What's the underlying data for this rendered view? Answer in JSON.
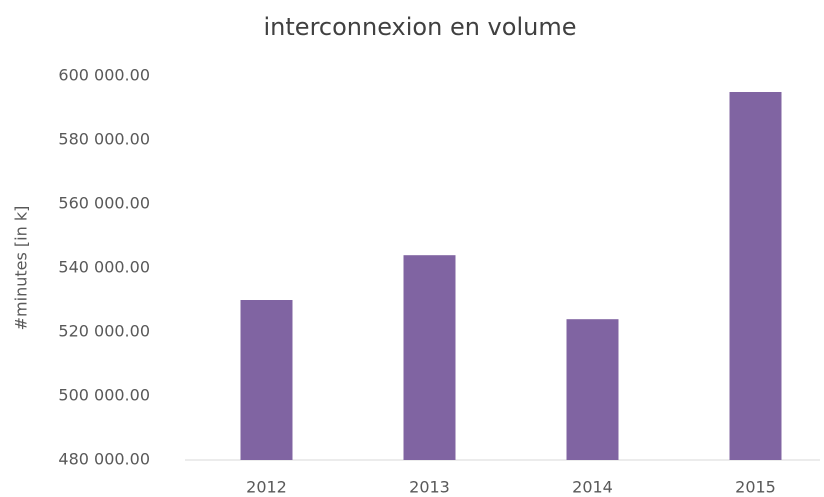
{
  "chart_data": {
    "type": "bar",
    "title": "interconnexion en volume",
    "y_label": "#minutes [in k]",
    "categories": [
      "2012",
      "2013",
      "2014",
      "2015"
    ],
    "values": [
      530000,
      544000,
      524000,
      595000
    ],
    "color": "#8064a2",
    "ylim": [
      480000,
      600000
    ],
    "yticks": [
      {
        "value": 480000,
        "label": "480 000.00"
      },
      {
        "value": 500000,
        "label": "500 000.00"
      },
      {
        "value": 520000,
        "label": "520 000.00"
      },
      {
        "value": 540000,
        "label": "540 000.00"
      },
      {
        "value": 560000,
        "label": "560 000.00"
      },
      {
        "value": 580000,
        "label": "580 000.00"
      },
      {
        "value": 600000,
        "label": "600 000.00"
      }
    ],
    "grid": false
  }
}
